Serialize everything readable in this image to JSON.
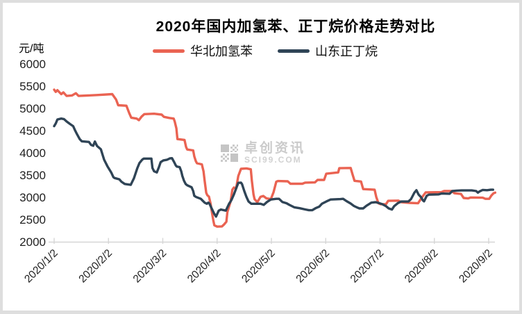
{
  "title": "2020年国内加氢苯、正丁烷价格走势对比",
  "y_unit": "元/吨",
  "watermark": {
    "line1": "卓创资讯",
    "line2": "SCI99.COM"
  },
  "chart_data": {
    "type": "line",
    "title": "2020年国内加氢苯、正丁烷价格走势对比",
    "ylabel": "元/吨",
    "ylim": [
      2000,
      6000
    ],
    "yticks": [
      2000,
      2500,
      3000,
      3500,
      4000,
      4500,
      5000,
      5500,
      6000
    ],
    "xticks": [
      "2020/1/2",
      "2020/2/2",
      "2020/3/2",
      "2020/4/2",
      "2020/5/2",
      "2020/6/2",
      "2020/7/2",
      "2020/8/2",
      "2020/9/2"
    ],
    "x_unit": "months after 2020/1/2 (0 = 2020/1/2, 8 = 2020/9/2)",
    "grid": false,
    "legend_position": "top-center",
    "axis_color": "#d6d6d6",
    "series": [
      {
        "name": "华北加氢苯",
        "color": "#ea6352",
        "points": [
          [
            0,
            5420
          ],
          [
            0.03,
            5370
          ],
          [
            0.06,
            5410
          ],
          [
            0.13,
            5320
          ],
          [
            0.17,
            5360
          ],
          [
            0.23,
            5280
          ],
          [
            0.33,
            5290
          ],
          [
            0.4,
            5340
          ],
          [
            0.45,
            5280
          ],
          [
            0.79,
            5300
          ],
          [
            1.07,
            5320
          ],
          [
            1.14,
            5200
          ],
          [
            1.18,
            5070
          ],
          [
            1.33,
            5060
          ],
          [
            1.38,
            4900
          ],
          [
            1.42,
            4790
          ],
          [
            1.52,
            4770
          ],
          [
            1.56,
            4735
          ],
          [
            1.61,
            4815
          ],
          [
            1.66,
            4870
          ],
          [
            1.84,
            4880
          ],
          [
            1.98,
            4860
          ],
          [
            2.02,
            4810
          ],
          [
            2.12,
            4785
          ],
          [
            2.2,
            4770
          ],
          [
            2.22,
            4705
          ],
          [
            2.25,
            4550
          ],
          [
            2.27,
            4310
          ],
          [
            2.4,
            4290
          ],
          [
            2.43,
            4130
          ],
          [
            2.45,
            4075
          ],
          [
            2.56,
            4055
          ],
          [
            2.58,
            3920
          ],
          [
            2.61,
            3810
          ],
          [
            2.63,
            3765
          ],
          [
            2.72,
            3740
          ],
          [
            2.75,
            3585
          ],
          [
            2.77,
            3375
          ],
          [
            2.8,
            3100
          ],
          [
            2.82,
            3045
          ],
          [
            2.85,
            3015
          ],
          [
            2.88,
            2855
          ],
          [
            2.9,
            2700
          ],
          [
            2.93,
            2480
          ],
          [
            2.95,
            2370
          ],
          [
            3,
            2340
          ],
          [
            3.09,
            2345
          ],
          [
            3.13,
            2390
          ],
          [
            3.17,
            2450
          ],
          [
            3.19,
            2670
          ],
          [
            3.25,
            2910
          ],
          [
            3.28,
            3170
          ],
          [
            3.31,
            3220
          ],
          [
            3.35,
            3195
          ],
          [
            3.39,
            3480
          ],
          [
            3.44,
            3640
          ],
          [
            3.54,
            3650
          ],
          [
            3.62,
            3630
          ],
          [
            3.64,
            3375
          ],
          [
            3.67,
            3065
          ],
          [
            3.69,
            2960
          ],
          [
            3.74,
            2890
          ],
          [
            3.8,
            3010
          ],
          [
            3.85,
            3030
          ],
          [
            3.91,
            2975
          ],
          [
            3.99,
            2960
          ],
          [
            4.04,
            3115
          ],
          [
            4.09,
            3350
          ],
          [
            4.12,
            3365
          ],
          [
            4.3,
            3360
          ],
          [
            4.35,
            3305
          ],
          [
            4.57,
            3305
          ],
          [
            4.62,
            3330
          ],
          [
            4.8,
            3335
          ],
          [
            4.85,
            3390
          ],
          [
            4.97,
            3390
          ],
          [
            5.01,
            3530
          ],
          [
            5.23,
            3560
          ],
          [
            5.25,
            3655
          ],
          [
            5.46,
            3660
          ],
          [
            5.49,
            3530
          ],
          [
            5.53,
            3370
          ],
          [
            5.65,
            3355
          ],
          [
            5.69,
            3185
          ],
          [
            5.9,
            3170
          ],
          [
            5.93,
            3010
          ],
          [
            5.97,
            2865
          ],
          [
            6.01,
            2845
          ],
          [
            6.11,
            2845
          ],
          [
            6.15,
            2920
          ],
          [
            6.34,
            2925
          ],
          [
            6.39,
            2890
          ],
          [
            6.54,
            2875
          ],
          [
            6.7,
            2865
          ],
          [
            6.75,
            2960
          ],
          [
            6.8,
            3045
          ],
          [
            6.84,
            3110
          ],
          [
            7.13,
            3115
          ],
          [
            7.18,
            3140
          ],
          [
            7.32,
            3140
          ],
          [
            7.37,
            3090
          ],
          [
            7.49,
            3075
          ],
          [
            7.54,
            2985
          ],
          [
            7.62,
            2975
          ],
          [
            7.67,
            2995
          ],
          [
            7.89,
            2990
          ],
          [
            7.94,
            2965
          ],
          [
            8.01,
            2965
          ],
          [
            8.05,
            3040
          ],
          [
            8.09,
            3090
          ],
          [
            8.12,
            3105
          ]
        ]
      },
      {
        "name": "山东正丁烷",
        "color": "#2f4456",
        "points": [
          [
            0,
            4600
          ],
          [
            0.03,
            4660
          ],
          [
            0.06,
            4750
          ],
          [
            0.13,
            4770
          ],
          [
            0.18,
            4760
          ],
          [
            0.23,
            4705
          ],
          [
            0.29,
            4650
          ],
          [
            0.35,
            4600
          ],
          [
            0.38,
            4520
          ],
          [
            0.42,
            4420
          ],
          [
            0.47,
            4310
          ],
          [
            0.51,
            4260
          ],
          [
            0.64,
            4245
          ],
          [
            0.68,
            4180
          ],
          [
            0.72,
            4160
          ],
          [
            0.75,
            4255
          ],
          [
            0.79,
            4155
          ],
          [
            0.86,
            4080
          ],
          [
            0.92,
            3845
          ],
          [
            0.98,
            3700
          ],
          [
            1.05,
            3560
          ],
          [
            1.09,
            3455
          ],
          [
            1.11,
            3435
          ],
          [
            1.2,
            3405
          ],
          [
            1.24,
            3350
          ],
          [
            1.3,
            3300
          ],
          [
            1.41,
            3280
          ],
          [
            1.47,
            3430
          ],
          [
            1.53,
            3650
          ],
          [
            1.57,
            3770
          ],
          [
            1.62,
            3845
          ],
          [
            1.65,
            3870
          ],
          [
            1.79,
            3870
          ],
          [
            1.81,
            3660
          ],
          [
            1.84,
            3585
          ],
          [
            1.89,
            3560
          ],
          [
            1.93,
            3680
          ],
          [
            1.96,
            3790
          ],
          [
            2.01,
            3830
          ],
          [
            2.08,
            3845
          ],
          [
            2.13,
            3875
          ],
          [
            2.17,
            3880
          ],
          [
            2.21,
            3790
          ],
          [
            2.24,
            3715
          ],
          [
            2.26,
            3690
          ],
          [
            2.31,
            3680
          ],
          [
            2.34,
            3585
          ],
          [
            2.36,
            3480
          ],
          [
            2.39,
            3375
          ],
          [
            2.42,
            3300
          ],
          [
            2.45,
            3270
          ],
          [
            2.53,
            3225
          ],
          [
            2.56,
            3140
          ],
          [
            2.58,
            3035
          ],
          [
            2.61,
            3010
          ],
          [
            2.7,
            2965
          ],
          [
            2.73,
            2930
          ],
          [
            2.77,
            2880
          ],
          [
            2.81,
            2855
          ],
          [
            2.84,
            2880
          ],
          [
            2.86,
            2855
          ],
          [
            2.9,
            2750
          ],
          [
            2.94,
            2645
          ],
          [
            2.98,
            2565
          ],
          [
            3,
            2620
          ],
          [
            3.03,
            2700
          ],
          [
            3.07,
            2725
          ],
          [
            3.16,
            2700
          ],
          [
            3.22,
            2855
          ],
          [
            3.26,
            2930
          ],
          [
            3.31,
            3065
          ],
          [
            3.35,
            3195
          ],
          [
            3.39,
            3325
          ],
          [
            3.44,
            3330
          ],
          [
            3.46,
            3295
          ],
          [
            3.5,
            3140
          ],
          [
            3.54,
            3010
          ],
          [
            3.58,
            2905
          ],
          [
            3.63,
            2855
          ],
          [
            3.8,
            2855
          ],
          [
            3.86,
            2830
          ],
          [
            3.92,
            2895
          ],
          [
            3.99,
            2950
          ],
          [
            4.09,
            2965
          ],
          [
            4.14,
            2965
          ],
          [
            4.2,
            2895
          ],
          [
            4.28,
            2865
          ],
          [
            4.33,
            2830
          ],
          [
            4.42,
            2775
          ],
          [
            4.52,
            2755
          ],
          [
            4.63,
            2725
          ],
          [
            4.69,
            2710
          ],
          [
            4.75,
            2710
          ],
          [
            4.82,
            2760
          ],
          [
            4.88,
            2790
          ],
          [
            4.93,
            2855
          ],
          [
            5.01,
            2905
          ],
          [
            5.09,
            2950
          ],
          [
            5.27,
            2960
          ],
          [
            5.32,
            2965
          ],
          [
            5.38,
            2915
          ],
          [
            5.46,
            2860
          ],
          [
            5.52,
            2805
          ],
          [
            5.57,
            2775
          ],
          [
            5.62,
            2750
          ],
          [
            5.69,
            2750
          ],
          [
            5.75,
            2810
          ],
          [
            5.84,
            2880
          ],
          [
            5.92,
            2890
          ],
          [
            5.98,
            2870
          ],
          [
            6.04,
            2845
          ],
          [
            6.11,
            2800
          ],
          [
            6.16,
            2750
          ],
          [
            6.22,
            2725
          ],
          [
            6.26,
            2800
          ],
          [
            6.33,
            2870
          ],
          [
            6.39,
            2905
          ],
          [
            6.52,
            2905
          ],
          [
            6.57,
            2960
          ],
          [
            6.63,
            3100
          ],
          [
            6.67,
            3160
          ],
          [
            6.71,
            3060
          ],
          [
            6.75,
            3010
          ],
          [
            6.79,
            2930
          ],
          [
            6.81,
            2910
          ],
          [
            6.86,
            3035
          ],
          [
            6.9,
            3060
          ],
          [
            7.08,
            3065
          ],
          [
            7.13,
            3085
          ],
          [
            7.28,
            3080
          ],
          [
            7.33,
            3140
          ],
          [
            7.41,
            3150
          ],
          [
            7.5,
            3155
          ],
          [
            7.69,
            3155
          ],
          [
            7.77,
            3140
          ],
          [
            7.8,
            3105
          ],
          [
            7.83,
            3130
          ],
          [
            7.89,
            3165
          ],
          [
            7.97,
            3160
          ],
          [
            8.04,
            3170
          ],
          [
            8.08,
            3170
          ]
        ]
      }
    ]
  }
}
